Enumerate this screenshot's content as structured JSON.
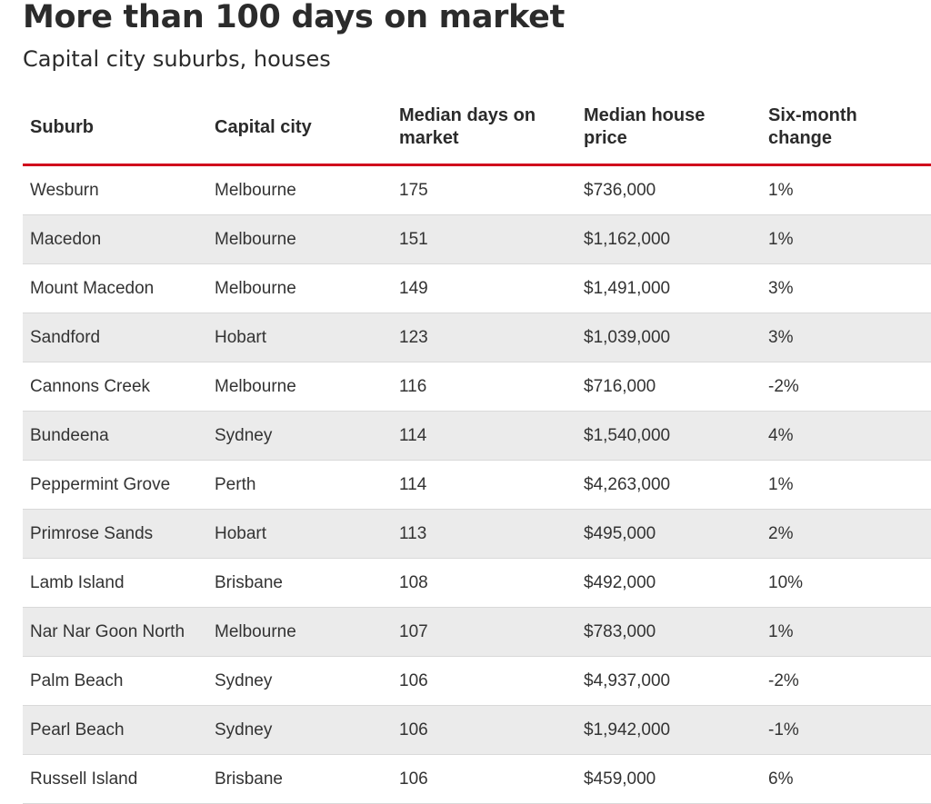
{
  "chart_data": {
    "type": "table",
    "title": "More than 100 days on market",
    "subtitle": "Capital city suburbs, houses",
    "columns": [
      "Suburb",
      "Capital city",
      "Median days on market",
      "Median house price",
      "Six-month change"
    ],
    "rows": [
      [
        "Wesburn",
        "Melbourne",
        "175",
        "$736,000",
        "1%"
      ],
      [
        "Macedon",
        "Melbourne",
        "151",
        "$1,162,000",
        "1%"
      ],
      [
        "Mount Macedon",
        "Melbourne",
        "149",
        "$1,491,000",
        "3%"
      ],
      [
        "Sandford",
        "Hobart",
        "123",
        "$1,039,000",
        "3%"
      ],
      [
        "Cannons Creek",
        "Melbourne",
        "116",
        "$716,000",
        "-2%"
      ],
      [
        "Bundeena",
        "Sydney",
        "114",
        "$1,540,000",
        "4%"
      ],
      [
        "Peppermint Grove",
        "Perth",
        "114",
        "$4,263,000",
        "1%"
      ],
      [
        "Primrose Sands",
        "Hobart",
        "113",
        "$495,000",
        "2%"
      ],
      [
        "Lamb Island",
        "Brisbane",
        "108",
        "$492,000",
        "10%"
      ],
      [
        "Nar Nar Goon North",
        "Melbourne",
        "107",
        "$783,000",
        "1%"
      ],
      [
        "Palm Beach",
        "Sydney",
        "106",
        "$4,937,000",
        "-2%"
      ],
      [
        "Pearl Beach",
        "Sydney",
        "106",
        "$1,942,000",
        "-1%"
      ],
      [
        "Russell Island",
        "Brisbane",
        "106",
        "$459,000",
        "6%"
      ]
    ]
  },
  "colors": {
    "header_rule": "#d0021b",
    "row_alt": "#ebebeb",
    "row_divider": "#d9d9d9"
  }
}
